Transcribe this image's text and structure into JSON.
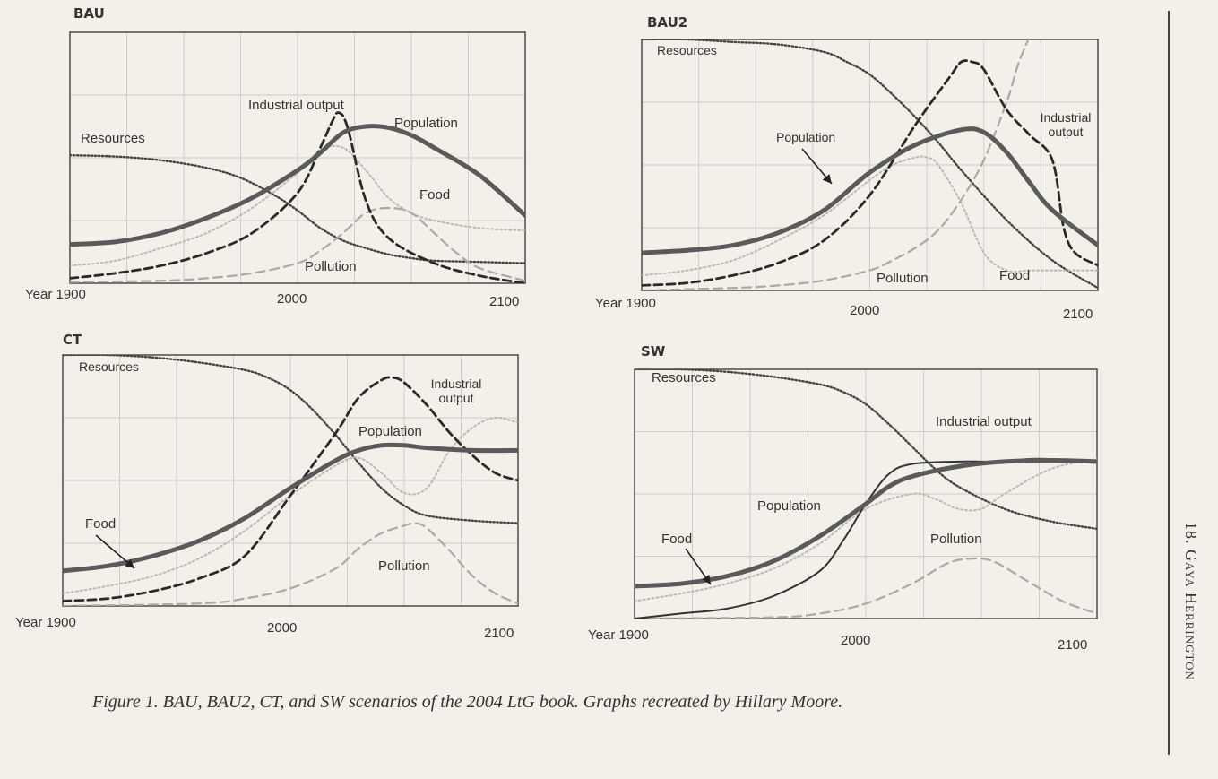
{
  "caption": "Figure 1. BAU, BAU2, CT, and SW scenarios of the 2004 LtG book. Graphs recreated by Hillary Moore.",
  "running_head": "18. Gaya Herrington",
  "chart_data": [
    {
      "type": "line",
      "title": "BAU",
      "x_ticks": [
        "Year 1900",
        "2000",
        "2100"
      ],
      "xlim": [
        1900,
        2100
      ],
      "ylim": [
        0,
        100
      ],
      "labels": {
        "industrial": "Industrial output",
        "population": "Population",
        "resources": "Resources",
        "food": "Food",
        "pollution": "Pollution"
      },
      "series": [
        {
          "name": "Resources",
          "style": "dotted",
          "x": [
            1900,
            1920,
            1940,
            1960,
            1975,
            1990,
            2000,
            2010,
            2020,
            2030,
            2040,
            2050,
            2060,
            2080,
            2100
          ],
          "y": [
            51,
            50.5,
            49,
            46,
            42,
            35,
            29,
            22,
            17,
            14,
            11.5,
            10,
            9,
            8.5,
            8
          ]
        },
        {
          "name": "Population",
          "style": "thick",
          "x": [
            1900,
            1920,
            1940,
            1960,
            1980,
            2000,
            2010,
            2020,
            2030,
            2040,
            2050,
            2060,
            2080,
            2100
          ],
          "y": [
            15.5,
            16.5,
            20,
            26,
            34,
            45,
            52,
            60,
            62.5,
            62,
            59,
            54,
            43,
            27
          ]
        },
        {
          "name": "Industrial output",
          "style": "dashed",
          "x": [
            1900,
            1920,
            1940,
            1960,
            1980,
            2000,
            2010,
            2015,
            2018,
            2022,
            2030,
            2040,
            2060,
            2080,
            2100
          ],
          "y": [
            2,
            4,
            7,
            12,
            20,
            36,
            54,
            64,
            68,
            62,
            33,
            18,
            8,
            3,
            0
          ]
        },
        {
          "name": "Food",
          "style": "dotted-light",
          "x": [
            1900,
            1920,
            1940,
            1960,
            1980,
            2000,
            2010,
            2020,
            2030,
            2040,
            2050,
            2060,
            2080,
            2100
          ],
          "y": [
            7,
            9,
            14,
            20,
            30,
            44,
            53,
            54,
            45,
            34,
            28,
            25,
            22,
            21
          ]
        },
        {
          "name": "Pollution",
          "style": "dashed-light",
          "x": [
            1900,
            1940,
            1960,
            1980,
            2000,
            2010,
            2020,
            2030,
            2040,
            2050,
            2060,
            2070,
            2080,
            2100
          ],
          "y": [
            0.5,
            1,
            2,
            4,
            8,
            13,
            20,
            28,
            30,
            28,
            20,
            12,
            6,
            1
          ]
        }
      ]
    },
    {
      "type": "line",
      "title": "BAU2",
      "x_ticks": [
        "Year 1900",
        "2000",
        "2100"
      ],
      "xlim": [
        1900,
        2100
      ],
      "ylim": [
        0,
        100
      ],
      "labels": {
        "industrial": "Industrial output",
        "population": "Population",
        "resources": "Resources",
        "food": "Food",
        "pollution": "Pollution"
      },
      "series": [
        {
          "name": "Resources",
          "style": "dotted",
          "x": [
            1900,
            1920,
            1940,
            1960,
            1980,
            1990,
            2000,
            2010,
            2020,
            2030,
            2040,
            2060,
            2080,
            2100
          ],
          "y": [
            100,
            100,
            99,
            98,
            95,
            91,
            86,
            78,
            69,
            59,
            48,
            28,
            12,
            1
          ]
        },
        {
          "name": "Population",
          "style": "thick",
          "x": [
            1900,
            1920,
            1940,
            1960,
            1980,
            2000,
            2020,
            2040,
            2050,
            2060,
            2070,
            2080,
            2100
          ],
          "y": [
            15,
            16,
            18,
            23,
            32,
            47,
            58,
            64,
            63,
            55,
            43,
            32,
            18
          ]
        },
        {
          "name": "Industrial output",
          "style": "dashed",
          "x": [
            1900,
            1920,
            1940,
            1960,
            1980,
            2000,
            2020,
            2035,
            2040,
            2045,
            2050,
            2060,
            2070,
            2080,
            2085,
            2090,
            2100
          ],
          "y": [
            2,
            3,
            6,
            11,
            20,
            38,
            66,
            85,
            91,
            91,
            88,
            72,
            62,
            52,
            25,
            15,
            10
          ]
        },
        {
          "name": "Food",
          "style": "dotted-light",
          "x": [
            1900,
            1920,
            1940,
            1960,
            1980,
            2000,
            2010,
            2020,
            2025,
            2030,
            2040,
            2050,
            2060,
            2070,
            2080,
            2100
          ],
          "y": [
            6,
            8,
            12,
            20,
            30,
            44,
            50,
            53,
            53,
            50,
            35,
            15,
            8,
            8,
            8,
            8
          ]
        },
        {
          "name": "Pollution",
          "style": "dashed-light",
          "x": [
            1900,
            1940,
            1960,
            1980,
            2000,
            2010,
            2020,
            2030,
            2040,
            2050,
            2060,
            2065,
            2070
          ],
          "y": [
            0,
            1,
            2,
            4,
            8,
            12,
            17,
            24,
            36,
            52,
            75,
            90,
            101
          ]
        }
      ]
    },
    {
      "type": "line",
      "title": "CT",
      "x_ticks": [
        "Year 1900",
        "2000",
        "2100"
      ],
      "xlim": [
        1900,
        2100
      ],
      "ylim": [
        0,
        100
      ],
      "labels": {
        "industrial": "Industrial output",
        "population": "Population",
        "resources": "Resources",
        "food": "Food",
        "pollution": "Pollution"
      },
      "series": [
        {
          "name": "Resources",
          "style": "dotted",
          "x": [
            1900,
            1920,
            1940,
            1960,
            1980,
            1990,
            2000,
            2010,
            2020,
            2030,
            2040,
            2050,
            2060,
            2080,
            2100
          ],
          "y": [
            100,
            100,
            99,
            97,
            94,
            91,
            86,
            78,
            68,
            57,
            47,
            40,
            36,
            34,
            33
          ]
        },
        {
          "name": "Population",
          "style": "thick",
          "x": [
            1900,
            1920,
            1940,
            1960,
            1980,
            2000,
            2020,
            2030,
            2040,
            2050,
            2060,
            2080,
            2100
          ],
          "y": [
            14,
            16,
            20,
            26,
            35,
            47,
            58,
            62,
            64,
            64,
            63,
            62,
            62
          ]
        },
        {
          "name": "Industrial output",
          "style": "dashed",
          "x": [
            1900,
            1920,
            1940,
            1960,
            1980,
            2000,
            2020,
            2030,
            2040,
            2045,
            2050,
            2060,
            2070,
            2080,
            2090,
            2100
          ],
          "y": [
            2,
            3,
            6,
            11,
            20,
            44,
            69,
            83,
            90,
            91,
            89,
            80,
            69,
            60,
            53,
            50
          ]
        },
        {
          "name": "Food",
          "style": "dotted-light",
          "x": [
            1900,
            1920,
            1940,
            1960,
            1980,
            2000,
            2020,
            2030,
            2040,
            2050,
            2060,
            2070,
            2080,
            2090,
            2100
          ],
          "y": [
            5,
            8,
            12,
            19,
            30,
            44,
            56,
            59,
            53,
            45,
            47,
            62,
            71,
            75,
            73
          ]
        },
        {
          "name": "Pollution",
          "style": "dashed-light",
          "x": [
            1900,
            1960,
            1980,
            2000,
            2020,
            2030,
            2040,
            2050,
            2055,
            2060,
            2070,
            2080,
            2090,
            2100
          ],
          "y": [
            0,
            1,
            3,
            7,
            15,
            23,
            29,
            32,
            33,
            31,
            22,
            12,
            5,
            1
          ]
        }
      ]
    },
    {
      "type": "line",
      "title": "SW",
      "x_ticks": [
        "Year 1900",
        "2000",
        "2100"
      ],
      "xlim": [
        1900,
        2100
      ],
      "ylim": [
        0,
        100
      ],
      "labels": {
        "industrial": "Industrial output",
        "population": "Population",
        "resources": "Resources",
        "food": "Food",
        "pollution": "Pollution"
      },
      "series": [
        {
          "name": "Resources",
          "style": "dotted",
          "x": [
            1900,
            1920,
            1940,
            1960,
            1980,
            1990,
            2000,
            2010,
            2020,
            2030,
            2040,
            2060,
            2080,
            2100
          ],
          "y": [
            100,
            100,
            99,
            97,
            94,
            91,
            86,
            78,
            69,
            60,
            53,
            44,
            39,
            36
          ]
        },
        {
          "name": "Population",
          "style": "thick",
          "x": [
            1900,
            1920,
            1940,
            1960,
            1980,
            2000,
            2010,
            2020,
            2040,
            2060,
            2080,
            2100
          ],
          "y": [
            13,
            14,
            17,
            23,
            33,
            46,
            53,
            57,
            61,
            63,
            63.5,
            63
          ]
        },
        {
          "name": "Industrial output",
          "style": "dashed-thin",
          "x": [
            1900,
            1920,
            1940,
            1960,
            1980,
            1990,
            2000,
            2010,
            2020,
            2040,
            2050,
            2060,
            2070,
            2080,
            2100
          ],
          "y": [
            0,
            2,
            4,
            9,
            19,
            31,
            46,
            58,
            62,
            63,
            63,
            63,
            64,
            64,
            63
          ]
        },
        {
          "name": "Food",
          "style": "dotted-light",
          "x": [
            1900,
            1920,
            1940,
            1960,
            1980,
            2000,
            2020,
            2030,
            2040,
            2050,
            2060,
            2080,
            2100
          ],
          "y": [
            7,
            10,
            14,
            20,
            30,
            44,
            50,
            48,
            44,
            44,
            50,
            60,
            64
          ]
        },
        {
          "name": "Pollution",
          "style": "dashed-light",
          "x": [
            1900,
            1960,
            1980,
            2000,
            2020,
            2035,
            2045,
            2055,
            2070,
            2085,
            2100
          ],
          "y": [
            0,
            0.5,
            2,
            6,
            14,
            22,
            24,
            23,
            15,
            7,
            2
          ]
        }
      ]
    }
  ]
}
